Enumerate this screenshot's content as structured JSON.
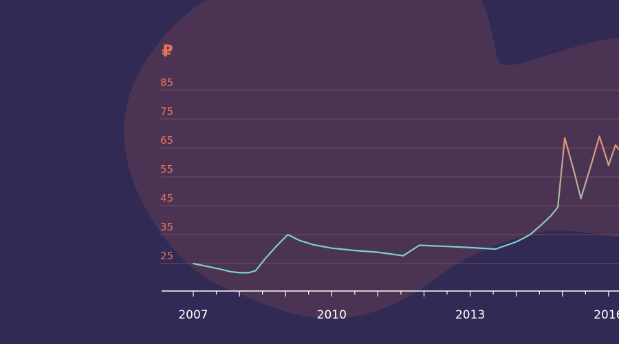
{
  "chart_data": {
    "type": "line",
    "y_unit_symbol": "₽",
    "y_ticks": [
      "25",
      "35",
      "45",
      "55",
      "65",
      "75",
      "85"
    ],
    "ylim": [
      15,
      95
    ],
    "x_ticks": [
      "2007",
      "2010",
      "2013",
      "2016"
    ],
    "xlim": [
      2007,
      2016.3
    ],
    "grid": true,
    "colors": {
      "background": "#302a55",
      "blob": "#4b3453",
      "gridline": "#7a4a55",
      "tick_y": "#e8735a",
      "tick_x": "#ffffff",
      "line_low": "#7ed0cc",
      "line_high": "#f0906a"
    },
    "series": [
      {
        "x": [
          2007.0,
          2007.3,
          2007.6,
          2007.8,
          2008.0,
          2008.2,
          2008.35,
          2008.55,
          2008.8,
          2009.05,
          2009.3,
          2009.6,
          2010.0,
          2010.5,
          2011.0,
          2011.55,
          2011.9,
          2012.5,
          2013.0,
          2013.55,
          2014.0,
          2014.3,
          2014.55,
          2014.75,
          2014.9,
          2015.05,
          2015.25,
          2015.4,
          2015.6,
          2015.8,
          2016.0,
          2016.15,
          2016.3
        ],
        "y": [
          25.0,
          24.0,
          23.0,
          22.2,
          21.8,
          21.8,
          22.5,
          26.5,
          31.0,
          35.0,
          33.0,
          31.5,
          30.3,
          29.5,
          28.9,
          27.7,
          31.3,
          30.9,
          30.5,
          30.0,
          32.5,
          35.0,
          38.5,
          41.5,
          44.5,
          68.5,
          57.0,
          47.5,
          58.0,
          69.0,
          59.0,
          66.0,
          63.0
        ]
      }
    ]
  }
}
